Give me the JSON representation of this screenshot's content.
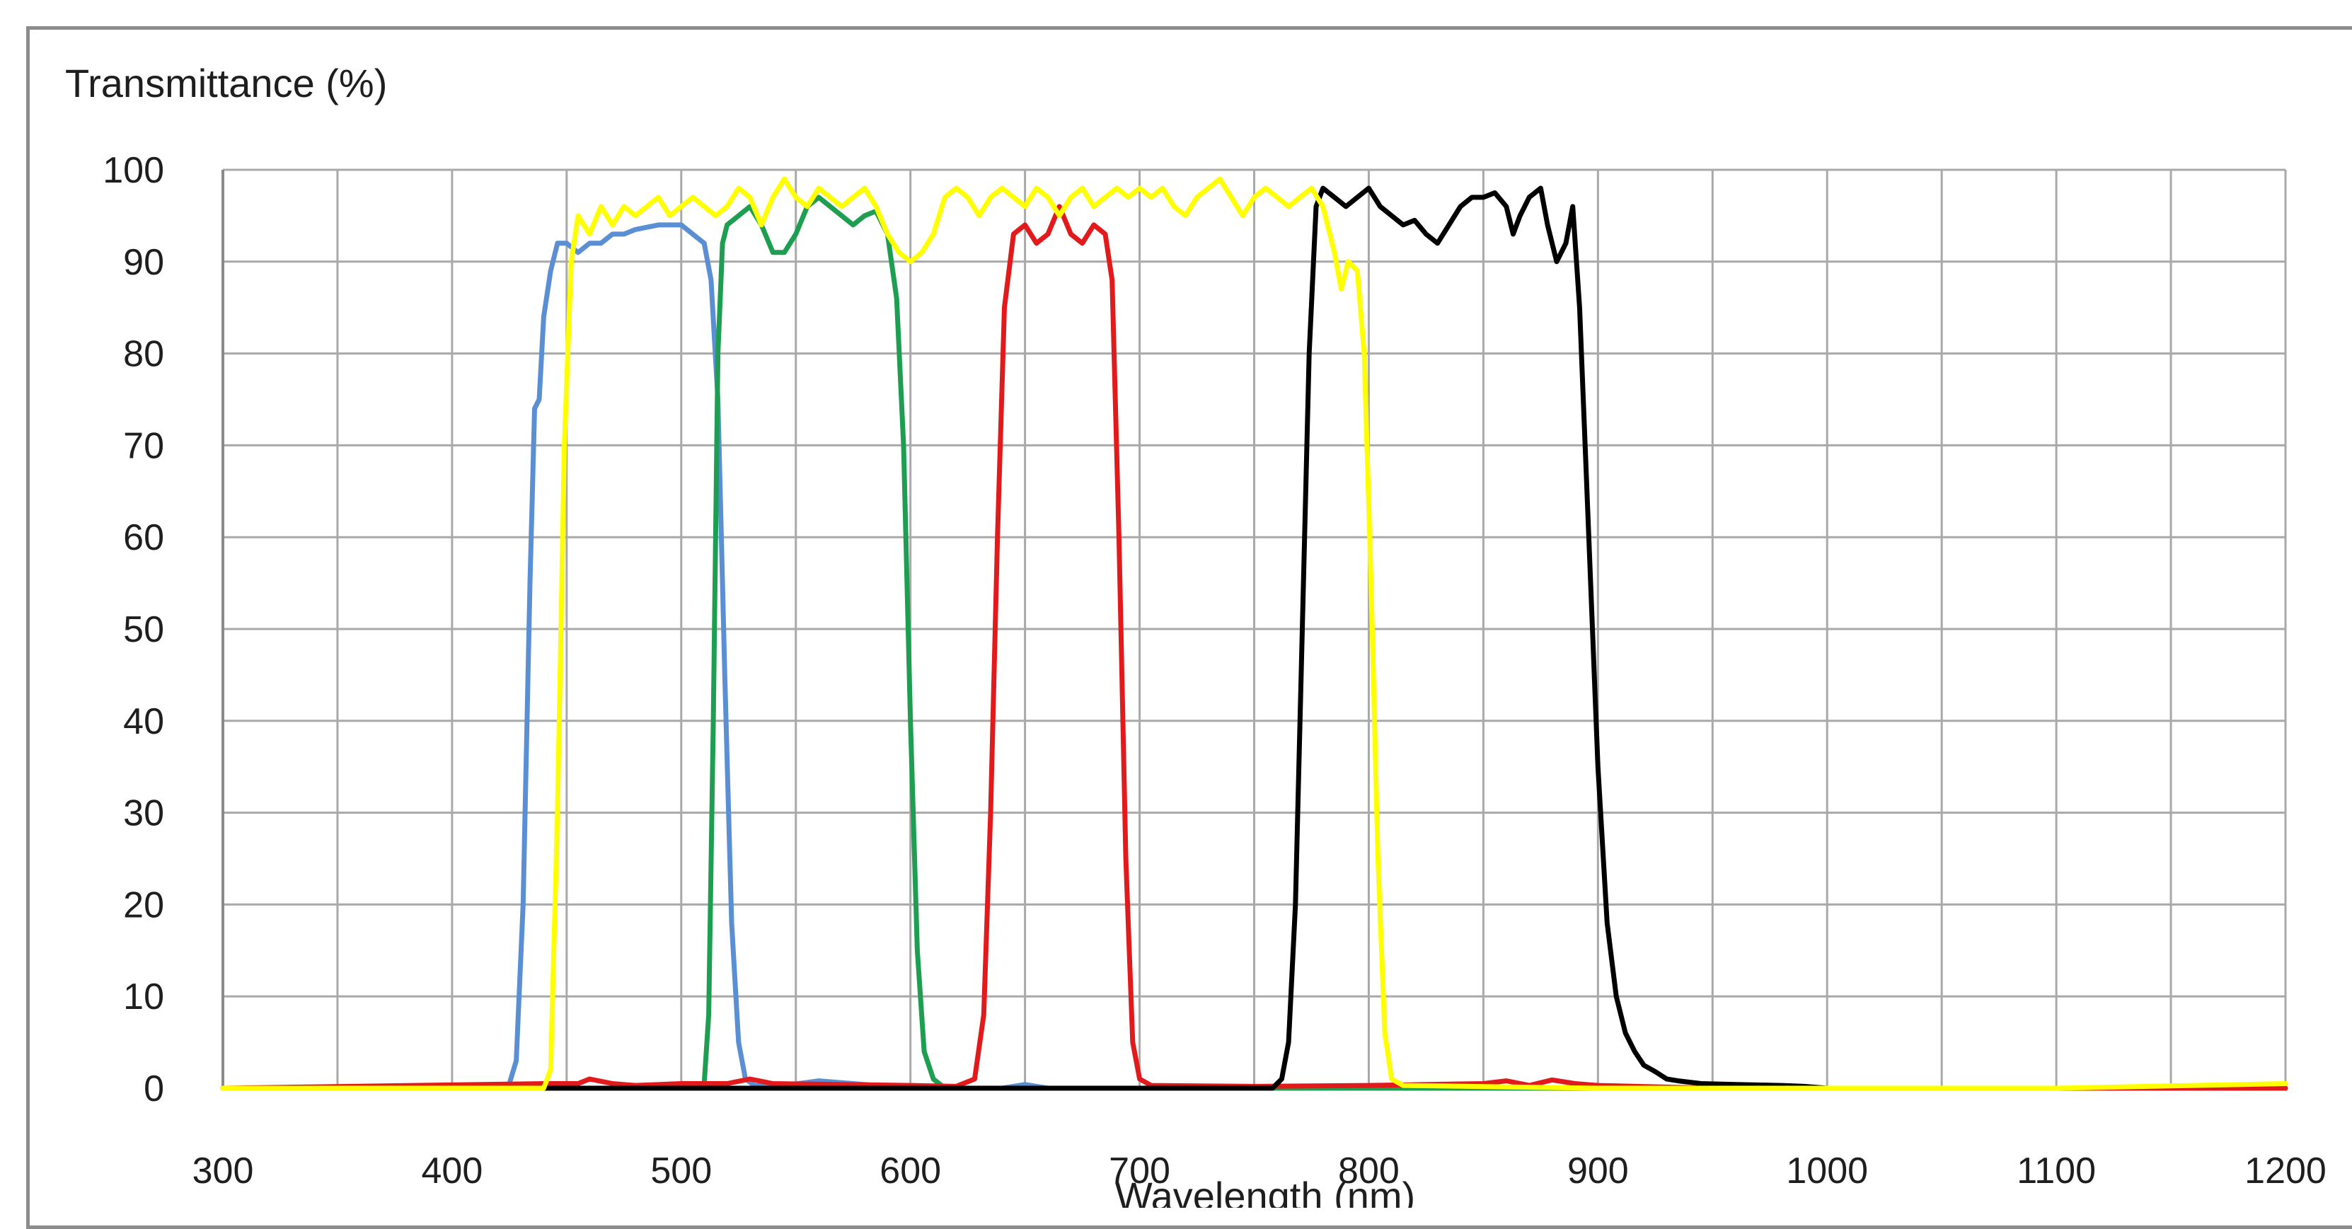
{
  "chart_data": {
    "type": "line",
    "ylabel": "Transmittance (%)",
    "xlabel": "Wavelength (nm)",
    "xlim": [
      300,
      1200
    ],
    "ylim": [
      0,
      100
    ],
    "xticks": [
      300,
      400,
      500,
      600,
      700,
      800,
      900,
      1000,
      1100,
      1200
    ],
    "yticks": [
      0,
      10,
      20,
      30,
      40,
      50,
      60,
      70,
      80,
      90,
      100
    ],
    "grid": true,
    "legend": "none",
    "series": [
      {
        "color": "#5b8fd4",
        "points": [
          [
            300,
            0
          ],
          [
            420,
            0
          ],
          [
            425,
            0.5
          ],
          [
            428,
            3
          ],
          [
            431,
            20
          ],
          [
            434,
            55
          ],
          [
            436,
            74
          ],
          [
            438,
            75
          ],
          [
            440,
            84
          ],
          [
            443,
            89
          ],
          [
            446,
            92
          ],
          [
            450,
            92
          ],
          [
            455,
            91
          ],
          [
            460,
            92
          ],
          [
            465,
            92
          ],
          [
            470,
            93
          ],
          [
            475,
            93
          ],
          [
            480,
            93.5
          ],
          [
            490,
            94
          ],
          [
            500,
            94
          ],
          [
            505,
            93
          ],
          [
            510,
            92
          ],
          [
            513,
            88
          ],
          [
            516,
            75
          ],
          [
            519,
            45
          ],
          [
            522,
            18
          ],
          [
            525,
            5
          ],
          [
            528,
            1
          ],
          [
            532,
            0.3
          ],
          [
            545,
            0.3
          ],
          [
            560,
            0.8
          ],
          [
            600,
            0
          ],
          [
            640,
            0
          ],
          [
            650,
            0.4
          ],
          [
            660,
            0
          ],
          [
            1200,
            0
          ]
        ]
      },
      {
        "color": "#1e9e50",
        "points": [
          [
            300,
            0
          ],
          [
            470,
            0
          ],
          [
            508,
            0
          ],
          [
            510,
            0.5
          ],
          [
            512,
            8
          ],
          [
            514,
            40
          ],
          [
            516,
            80
          ],
          [
            518,
            92
          ],
          [
            520,
            94
          ],
          [
            525,
            95
          ],
          [
            530,
            96
          ],
          [
            535,
            94
          ],
          [
            540,
            91
          ],
          [
            545,
            91
          ],
          [
            550,
            93
          ],
          [
            555,
            96
          ],
          [
            560,
            97
          ],
          [
            565,
            96
          ],
          [
            570,
            95
          ],
          [
            575,
            94
          ],
          [
            580,
            95
          ],
          [
            585,
            95.5
          ],
          [
            590,
            93
          ],
          [
            594,
            86
          ],
          [
            597,
            70
          ],
          [
            600,
            40
          ],
          [
            603,
            15
          ],
          [
            606,
            4
          ],
          [
            610,
            1
          ],
          [
            615,
            0
          ],
          [
            1200,
            0
          ]
        ]
      },
      {
        "color": "#e31a1c",
        "points": [
          [
            300,
            0
          ],
          [
            440,
            0.5
          ],
          [
            455,
            0.5
          ],
          [
            460,
            1
          ],
          [
            470,
            0.5
          ],
          [
            480,
            0.3
          ],
          [
            500,
            0.5
          ],
          [
            520,
            0.5
          ],
          [
            530,
            1
          ],
          [
            540,
            0.5
          ],
          [
            600,
            0.3
          ],
          [
            620,
            0.2
          ],
          [
            628,
            1
          ],
          [
            632,
            8
          ],
          [
            635,
            30
          ],
          [
            638,
            60
          ],
          [
            641,
            85
          ],
          [
            645,
            93
          ],
          [
            650,
            94
          ],
          [
            655,
            92
          ],
          [
            660,
            93
          ],
          [
            665,
            96
          ],
          [
            670,
            93
          ],
          [
            675,
            92
          ],
          [
            680,
            94
          ],
          [
            685,
            93
          ],
          [
            688,
            88
          ],
          [
            691,
            60
          ],
          [
            694,
            25
          ],
          [
            697,
            5
          ],
          [
            700,
            1
          ],
          [
            705,
            0.3
          ],
          [
            750,
            0.2
          ],
          [
            800,
            0.3
          ],
          [
            850,
            0.5
          ],
          [
            860,
            0.8
          ],
          [
            870,
            0.3
          ],
          [
            880,
            0.9
          ],
          [
            890,
            0.5
          ],
          [
            900,
            0.3
          ],
          [
            950,
            0
          ],
          [
            1200,
            0
          ]
        ]
      },
      {
        "color": "#000000",
        "points": [
          [
            430,
            0
          ],
          [
            600,
            0
          ],
          [
            700,
            0
          ],
          [
            758,
            0
          ],
          [
            762,
            1
          ],
          [
            765,
            5
          ],
          [
            768,
            20
          ],
          [
            771,
            50
          ],
          [
            774,
            80
          ],
          [
            777,
            96
          ],
          [
            780,
            98
          ],
          [
            785,
            97
          ],
          [
            790,
            96
          ],
          [
            795,
            97
          ],
          [
            800,
            98
          ],
          [
            805,
            96
          ],
          [
            810,
            95
          ],
          [
            815,
            94
          ],
          [
            820,
            94.5
          ],
          [
            825,
            93
          ],
          [
            830,
            92
          ],
          [
            835,
            94
          ],
          [
            840,
            96
          ],
          [
            845,
            97
          ],
          [
            850,
            97
          ],
          [
            855,
            97.5
          ],
          [
            860,
            96
          ],
          [
            863,
            93
          ],
          [
            866,
            95
          ],
          [
            870,
            97
          ],
          [
            875,
            98
          ],
          [
            878,
            94
          ],
          [
            882,
            90
          ],
          [
            886,
            92
          ],
          [
            889,
            96
          ],
          [
            892,
            85
          ],
          [
            896,
            60
          ],
          [
            900,
            35
          ],
          [
            904,
            18
          ],
          [
            908,
            10
          ],
          [
            912,
            6
          ],
          [
            916,
            4
          ],
          [
            920,
            2.5
          ],
          [
            925,
            1.8
          ],
          [
            930,
            1
          ],
          [
            935,
            0.8
          ],
          [
            945,
            0.5
          ],
          [
            960,
            0.4
          ],
          [
            980,
            0.3
          ],
          [
            990,
            0.2
          ],
          [
            1000,
            0
          ]
        ]
      },
      {
        "color": "#ffff00",
        "points": [
          [
            300,
            0
          ],
          [
            420,
            0
          ],
          [
            440,
            0
          ],
          [
            443,
            2
          ],
          [
            446,
            30
          ],
          [
            449,
            70
          ],
          [
            452,
            90
          ],
          [
            455,
            95
          ],
          [
            460,
            93
          ],
          [
            465,
            96
          ],
          [
            470,
            94
          ],
          [
            475,
            96
          ],
          [
            480,
            95
          ],
          [
            485,
            96
          ],
          [
            490,
            97
          ],
          [
            495,
            95
          ],
          [
            500,
            96
          ],
          [
            505,
            97
          ],
          [
            510,
            96
          ],
          [
            515,
            95
          ],
          [
            520,
            96
          ],
          [
            525,
            98
          ],
          [
            530,
            97
          ],
          [
            535,
            94
          ],
          [
            540,
            97
          ],
          [
            545,
            99
          ],
          [
            550,
            97
          ],
          [
            555,
            96
          ],
          [
            560,
            98
          ],
          [
            565,
            97
          ],
          [
            570,
            96
          ],
          [
            575,
            97
          ],
          [
            580,
            98
          ],
          [
            585,
            96
          ],
          [
            590,
            93
          ],
          [
            595,
            91
          ],
          [
            600,
            90
          ],
          [
            605,
            91
          ],
          [
            610,
            93
          ],
          [
            615,
            97
          ],
          [
            620,
            98
          ],
          [
            625,
            97
          ],
          [
            630,
            95
          ],
          [
            635,
            97
          ],
          [
            640,
            98
          ],
          [
            645,
            97
          ],
          [
            650,
            96
          ],
          [
            655,
            98
          ],
          [
            660,
            97
          ],
          [
            665,
            95
          ],
          [
            670,
            97
          ],
          [
            675,
            98
          ],
          [
            680,
            96
          ],
          [
            685,
            97
          ],
          [
            690,
            98
          ],
          [
            695,
            97
          ],
          [
            700,
            98
          ],
          [
            705,
            97
          ],
          [
            710,
            98
          ],
          [
            715,
            96
          ],
          [
            720,
            95
          ],
          [
            725,
            97
          ],
          [
            730,
            98
          ],
          [
            735,
            99
          ],
          [
            740,
            97
          ],
          [
            745,
            95
          ],
          [
            750,
            97
          ],
          [
            755,
            98
          ],
          [
            760,
            97
          ],
          [
            765,
            96
          ],
          [
            770,
            97
          ],
          [
            775,
            98
          ],
          [
            780,
            96
          ],
          [
            785,
            91
          ],
          [
            788,
            87
          ],
          [
            791,
            90
          ],
          [
            795,
            89
          ],
          [
            798,
            80
          ],
          [
            801,
            55
          ],
          [
            804,
            25
          ],
          [
            807,
            6
          ],
          [
            810,
            1
          ],
          [
            815,
            0.3
          ],
          [
            900,
            0
          ],
          [
            1100,
            0
          ],
          [
            1200,
            0.5
          ]
        ]
      }
    ]
  }
}
